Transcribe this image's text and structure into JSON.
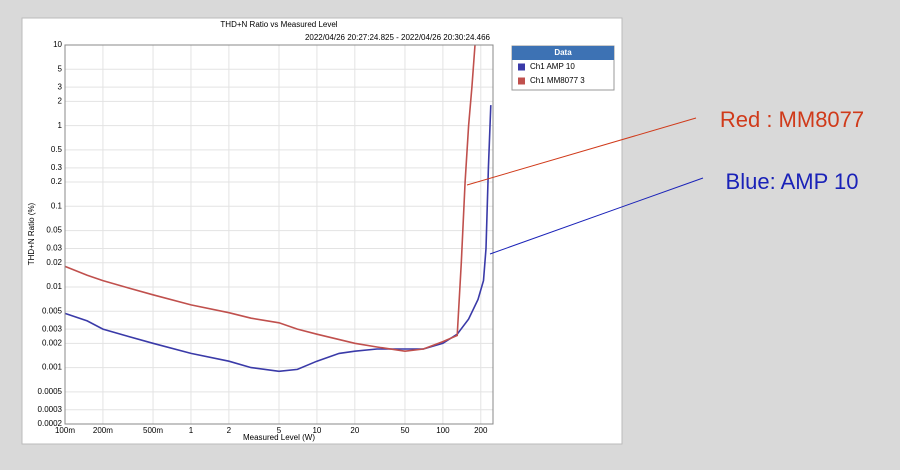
{
  "chart_data": {
    "type": "line",
    "title": "THD+N Ratio vs Measured Level",
    "subtitle": "2022/04/26 20:27:24.825 - 2022/04/26 20:30:24.466",
    "x_label": "Measured Level (W)",
    "y_label": "THD+N Ratio (%)",
    "log_x": true,
    "log_y": true,
    "grid": true,
    "xlim": [
      0.1,
      250
    ],
    "ylim": [
      0.0002,
      10
    ],
    "xticks": [
      {
        "value": 0.1,
        "label": "100m"
      },
      {
        "value": 0.2,
        "label": "200m"
      },
      {
        "value": 0.5,
        "label": "500m"
      },
      1,
      2,
      5,
      10,
      20,
      50,
      100,
      200
    ],
    "yticks": [
      10,
      5,
      3,
      2,
      1,
      0.5,
      0.3,
      0.2,
      0.1,
      0.05,
      0.03,
      0.02,
      0.01,
      0.005,
      0.003,
      0.002,
      0.001,
      0.0005,
      0.0003,
      0.0002
    ],
    "legend_title": "Data",
    "legend_position": "upper right",
    "series": [
      {
        "name": "Ch1 AMP 10",
        "color": "#3a3aa8",
        "x": [
          0.1,
          0.15,
          0.2,
          0.3,
          0.5,
          1,
          2,
          3,
          5,
          7,
          10,
          15,
          20,
          30,
          50,
          70,
          100,
          130,
          160,
          190,
          210,
          220,
          230,
          240
        ],
        "values": [
          0.0047,
          0.0038,
          0.003,
          0.0025,
          0.002,
          0.0015,
          0.0012,
          0.001,
          0.0009,
          0.00095,
          0.0012,
          0.0015,
          0.0016,
          0.0017,
          0.0017,
          0.0017,
          0.002,
          0.0026,
          0.004,
          0.007,
          0.012,
          0.03,
          0.3,
          1.8
        ]
      },
      {
        "name": "Ch1 MM8077 3",
        "color": "#c0504d",
        "x": [
          0.1,
          0.15,
          0.2,
          0.3,
          0.5,
          1,
          2,
          3,
          5,
          7,
          10,
          20,
          30,
          50,
          70,
          100,
          130,
          140,
          150,
          160,
          170,
          180
        ],
        "values": [
          0.018,
          0.014,
          0.012,
          0.01,
          0.008,
          0.006,
          0.0048,
          0.0041,
          0.0036,
          0.003,
          0.0026,
          0.002,
          0.0018,
          0.0016,
          0.0017,
          0.0021,
          0.0025,
          0.02,
          0.2,
          1,
          3,
          10
        ]
      }
    ],
    "annotations": [
      {
        "text": "Red : MM8077",
        "color": "#d03a1a"
      },
      {
        "text": "Blue: AMP 10",
        "color": "#1a22b8"
      }
    ]
  }
}
